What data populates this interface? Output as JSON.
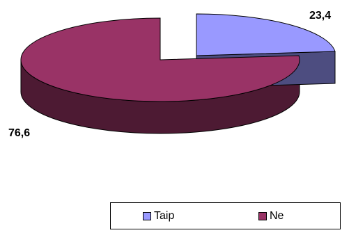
{
  "chart_data": {
    "type": "pie",
    "style": "3d",
    "categories": [
      "Taip",
      "Ne"
    ],
    "values": [
      23.4,
      76.6
    ],
    "data_labels": [
      "23,4",
      "76,6"
    ],
    "exploded_slice": "Taip",
    "legend_position": "bottom-right",
    "colors": {
      "Taip": {
        "top": "#9999ff",
        "side": "#4d4d80"
      },
      "Ne": {
        "top": "#993366",
        "side": "#4d1a33"
      },
      "outline": "#000000"
    }
  }
}
